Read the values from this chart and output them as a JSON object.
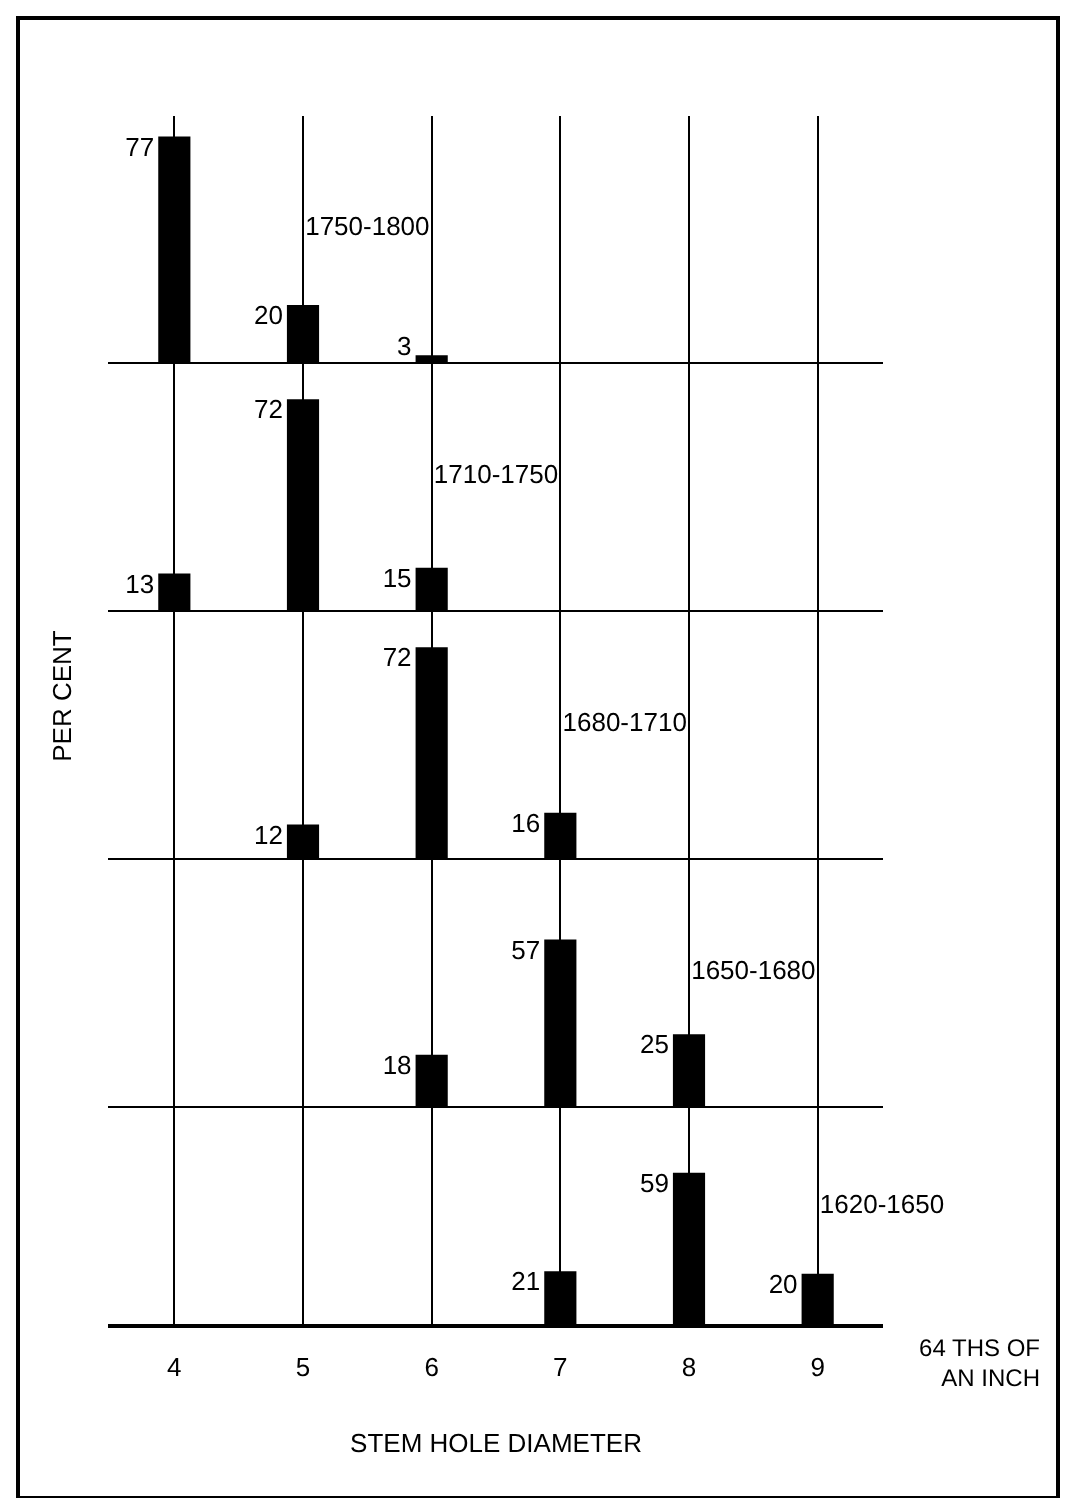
{
  "chart_data": [
    {
      "type": "bar",
      "title": "1750-1800",
      "categories": [
        "4",
        "5",
        "6",
        "7",
        "8",
        "9"
      ],
      "values": [
        77,
        20,
        3,
        null,
        null,
        null
      ],
      "color": "#000000",
      "data_labels": true,
      "grid": "x",
      "tick_labels": false,
      "legend": false
    },
    {
      "type": "bar",
      "title": "1710-1750",
      "categories": [
        "4",
        "5",
        "6",
        "7",
        "8",
        "9"
      ],
      "values": [
        13,
        72,
        15,
        null,
        null,
        null
      ],
      "color": "#000000",
      "data_labels": true,
      "grid": "x",
      "tick_labels": false,
      "legend": false
    },
    {
      "type": "bar",
      "title": "1680-1710",
      "ylabel": "PER CENT",
      "categories": [
        "4",
        "5",
        "6",
        "7",
        "8",
        "9"
      ],
      "values": [
        null,
        12,
        72,
        16,
        null,
        null
      ],
      "color": "#000000",
      "data_labels": true,
      "grid": "x",
      "tick_labels": false,
      "legend": false
    },
    {
      "type": "bar",
      "title": "1650-1680",
      "categories": [
        "4",
        "5",
        "6",
        "7",
        "8",
        "9"
      ],
      "values": [
        null,
        null,
        18,
        57,
        25,
        null
      ],
      "color": "#000000",
      "data_labels": true,
      "grid": "x",
      "tick_labels": false,
      "legend": false
    },
    {
      "type": "bar",
      "title": "1620-1650",
      "xlabel": "STEM HOLE DIAMETER",
      "annotations": [
        "64 THS OF AN INCH"
      ],
      "categories": [
        "4",
        "5",
        "6",
        "7",
        "8",
        "9"
      ],
      "values": [
        null,
        null,
        null,
        21,
        59,
        20
      ],
      "color": "#000000",
      "data_labels": true,
      "grid": "x",
      "tick_labels": "x",
      "legend": false
    }
  ]
}
